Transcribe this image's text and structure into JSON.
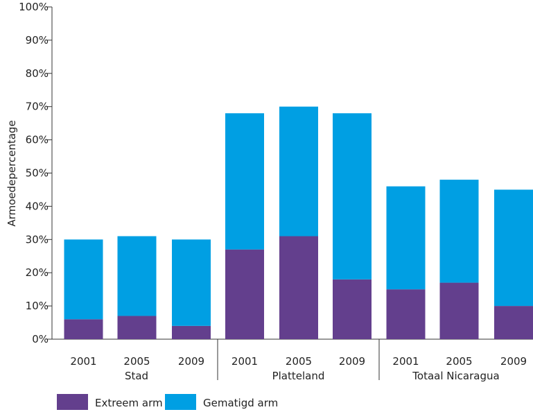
{
  "chart_data": {
    "type": "bar",
    "stacked": true,
    "ylabel": "Armoedepercentage",
    "ylim": [
      0,
      100
    ],
    "yticks": [
      "0%",
      "10%",
      "20%",
      "30%",
      "40%",
      "50%",
      "60%",
      "70%",
      "80%",
      "90%",
      "100%"
    ],
    "groups": [
      "Stad",
      "Platteland",
      "Totaal Nicaragua"
    ],
    "categories": [
      "2001",
      "2005",
      "2009",
      "2001",
      "2005",
      "2009",
      "2001",
      "2005",
      "2009"
    ],
    "series": [
      {
        "name": "Extreem arm",
        "color": "#633f8d",
        "values": [
          6,
          7,
          4,
          27,
          31,
          18,
          15,
          17,
          10
        ]
      },
      {
        "name": "Gematigd arm",
        "color": "#009fe3",
        "values": [
          24,
          24,
          26,
          41,
          39,
          50,
          31,
          31,
          35
        ]
      }
    ],
    "legend_position": "bottom-left",
    "grid": false
  }
}
